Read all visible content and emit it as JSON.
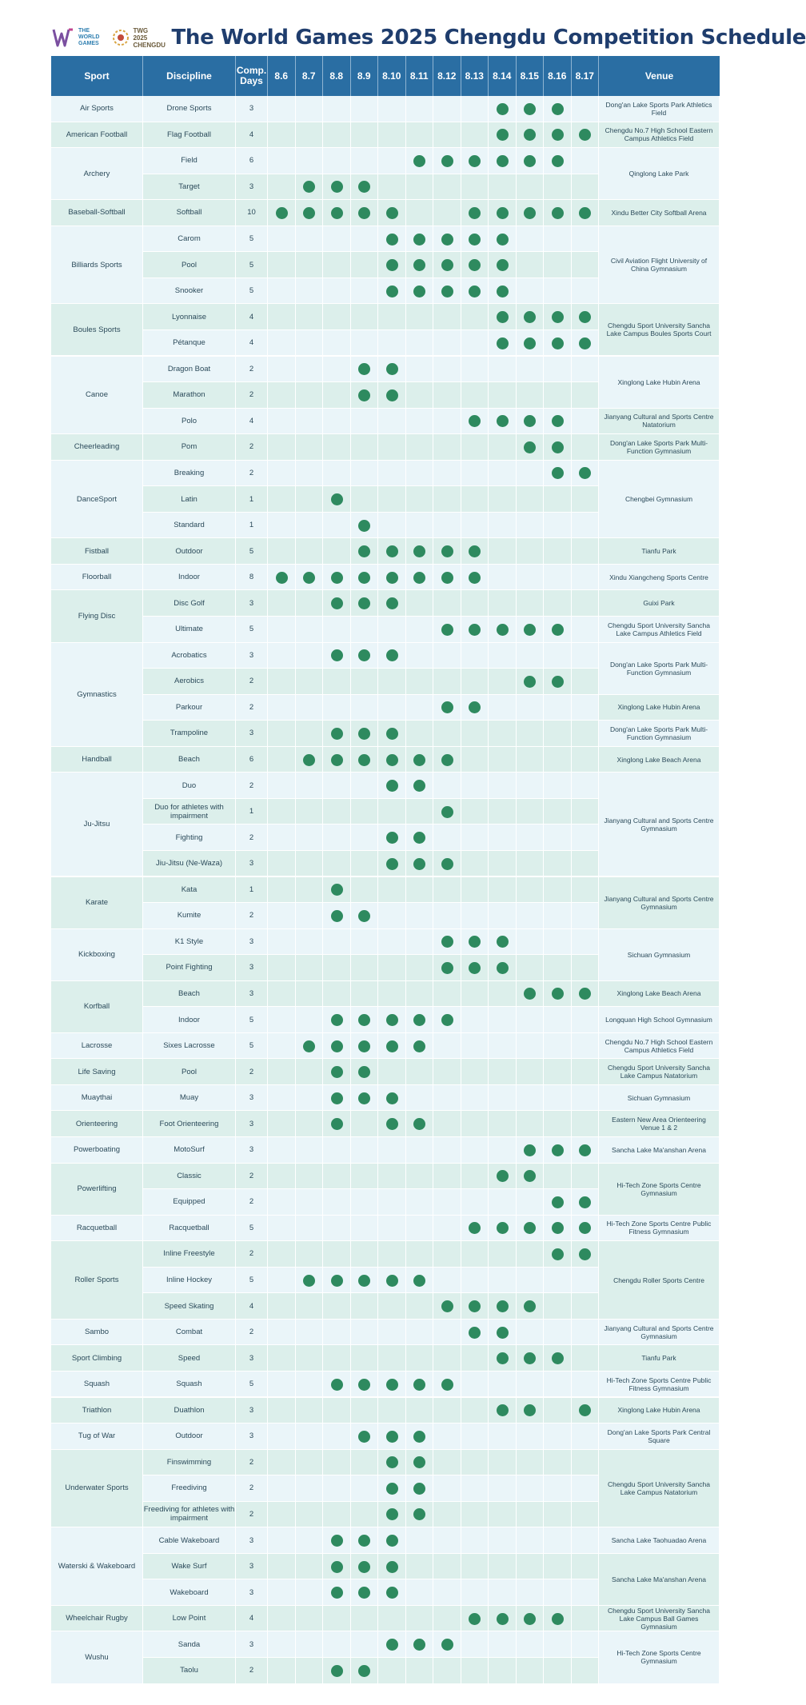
{
  "header": {
    "logo_text": "THE WORLD GAMES",
    "logo_year": "TWG 2025 CHENGDU",
    "title": "The World Games 2025 Chengdu Competition Schedule"
  },
  "columns": {
    "sport": "Sport",
    "discipline": "Discipline",
    "days": "Comp. Days",
    "venue": "Venue",
    "dates": [
      "8.6",
      "8.7",
      "8.8",
      "8.9",
      "8.10",
      "8.11",
      "8.12",
      "8.13",
      "8.14",
      "8.15",
      "8.16",
      "8.17"
    ]
  },
  "colors": {
    "header_bg": "#2a6ea3",
    "dot": "#2e8a5f",
    "band_a": "#eaf5f9",
    "band_b": "#dcefeb",
    "title": "#1f3d6d"
  },
  "sports": [
    {
      "name": "Air Sports",
      "disciplines": [
        {
          "name": "Drone Sports",
          "days": "3",
          "dates": [
            "8.14",
            "8.15",
            "8.16"
          ]
        }
      ],
      "venues": [
        {
          "name": "Dong'an Lake Sports Park Athletics Field",
          "rows": 1
        }
      ]
    },
    {
      "name": "American Football",
      "disciplines": [
        {
          "name": "Flag Football",
          "days": "4",
          "dates": [
            "8.14",
            "8.15",
            "8.16",
            "8.17"
          ]
        }
      ],
      "venues": [
        {
          "name": "Chengdu No.7 High School Eastern Campus Athletics Field",
          "rows": 1
        }
      ]
    },
    {
      "name": "Archery",
      "disciplines": [
        {
          "name": "Field",
          "days": "6",
          "dates": [
            "8.11",
            "8.12",
            "8.13",
            "8.14",
            "8.15",
            "8.16"
          ]
        },
        {
          "name": "Target",
          "days": "3",
          "dates": [
            "8.7",
            "8.8",
            "8.9"
          ]
        }
      ],
      "venues": [
        {
          "name": "Qinglong Lake Park",
          "rows": 2
        }
      ]
    },
    {
      "name": "Baseball-Softball",
      "disciplines": [
        {
          "name": "Softball",
          "days": "10",
          "dates": [
            "8.6",
            "8.7",
            "8.8",
            "8.9",
            "8.10",
            "8.13",
            "8.14",
            "8.15",
            "8.16",
            "8.17"
          ]
        }
      ],
      "venues": [
        {
          "name": "Xindu Better City Softball Arena",
          "rows": 1
        }
      ]
    },
    {
      "name": "Billiards Sports",
      "disciplines": [
        {
          "name": "Carom",
          "days": "5",
          "dates": [
            "8.10",
            "8.11",
            "8.12",
            "8.13",
            "8.14"
          ]
        },
        {
          "name": "Pool",
          "days": "5",
          "dates": [
            "8.10",
            "8.11",
            "8.12",
            "8.13",
            "8.14"
          ]
        },
        {
          "name": "Snooker",
          "days": "5",
          "dates": [
            "8.10",
            "8.11",
            "8.12",
            "8.13",
            "8.14"
          ]
        }
      ],
      "venues": [
        {
          "name": "Civil Aviation Flight University of China Gymnasium",
          "rows": 3
        }
      ]
    },
    {
      "name": "Boules Sports",
      "disciplines": [
        {
          "name": "Lyonnaise",
          "days": "4",
          "dates": [
            "8.14",
            "8.15",
            "8.16",
            "8.17"
          ]
        },
        {
          "name": "Pétanque",
          "days": "4",
          "dates": [
            "8.14",
            "8.15",
            "8.16",
            "8.17"
          ]
        }
      ],
      "venues": [
        {
          "name": "Chengdu Sport University Sancha Lake Campus Boules Sports Court",
          "rows": 2
        }
      ]
    },
    {
      "name": "Canoe",
      "disciplines": [
        {
          "name": "Dragon Boat",
          "days": "2",
          "dates": [
            "8.9",
            "8.10"
          ]
        },
        {
          "name": "Marathon",
          "days": "2",
          "dates": [
            "8.9",
            "8.10"
          ]
        },
        {
          "name": "Polo",
          "days": "4",
          "dates": [
            "8.13",
            "8.14",
            "8.15",
            "8.16"
          ]
        }
      ],
      "venues": [
        {
          "name": "Xinglong Lake Hubin Arena",
          "rows": 2
        },
        {
          "name": "Jianyang Cultural and Sports Centre Natatorium",
          "rows": 1
        }
      ]
    },
    {
      "name": "Cheerleading",
      "disciplines": [
        {
          "name": "Pom",
          "days": "2",
          "dates": [
            "8.15",
            "8.16"
          ]
        }
      ],
      "venues": [
        {
          "name": "Dong'an Lake Sports Park Multi-Function Gymnasium",
          "rows": 1
        }
      ]
    },
    {
      "name": "DanceSport",
      "disciplines": [
        {
          "name": "Breaking",
          "days": "2",
          "dates": [
            "8.16",
            "8.17"
          ]
        },
        {
          "name": "Latin",
          "days": "1",
          "dates": [
            "8.8"
          ]
        },
        {
          "name": "Standard",
          "days": "1",
          "dates": [
            "8.9"
          ]
        }
      ],
      "venues": [
        {
          "name": "Chengbei Gymnasium",
          "rows": 3
        }
      ]
    },
    {
      "name": "Fistball",
      "disciplines": [
        {
          "name": "Outdoor",
          "days": "5",
          "dates": [
            "8.9",
            "8.10",
            "8.11",
            "8.12",
            "8.13"
          ]
        }
      ],
      "venues": [
        {
          "name": "Tianfu Park",
          "rows": 1
        }
      ]
    },
    {
      "name": "Floorball",
      "disciplines": [
        {
          "name": "Indoor",
          "days": "8",
          "dates": [
            "8.6",
            "8.7",
            "8.8",
            "8.9",
            "8.10",
            "8.11",
            "8.12",
            "8.13"
          ]
        }
      ],
      "venues": [
        {
          "name": "Xindu Xiangcheng Sports Centre",
          "rows": 1
        }
      ]
    },
    {
      "name": "Flying Disc",
      "disciplines": [
        {
          "name": "Disc Golf",
          "days": "3",
          "dates": [
            "8.8",
            "8.9",
            "8.10"
          ]
        },
        {
          "name": "Ultimate",
          "days": "5",
          "dates": [
            "8.12",
            "8.13",
            "8.14",
            "8.15",
            "8.16"
          ]
        }
      ],
      "venues": [
        {
          "name": "Guixi Park",
          "rows": 1
        },
        {
          "name": "Chengdu Sport University Sancha Lake Campus Athletics Field",
          "rows": 1
        }
      ]
    },
    {
      "name": "Gymnastics",
      "disciplines": [
        {
          "name": "Acrobatics",
          "days": "3",
          "dates": [
            "8.8",
            "8.9",
            "8.10"
          ]
        },
        {
          "name": "Aerobics",
          "days": "2",
          "dates": [
            "8.15",
            "8.16"
          ]
        },
        {
          "name": "Parkour",
          "days": "2",
          "dates": [
            "8.12",
            "8.13"
          ]
        },
        {
          "name": "Trampoline",
          "days": "3",
          "dates": [
            "8.8",
            "8.9",
            "8.10"
          ]
        }
      ],
      "venues": [
        {
          "name": "Dong'an Lake Sports Park Multi-Function Gymnasium",
          "rows": 2
        },
        {
          "name": "Xinglong Lake Hubin Arena",
          "rows": 1
        },
        {
          "name": "Dong'an Lake Sports Park Multi-Function Gymnasium",
          "rows": 1
        }
      ]
    },
    {
      "name": "Handball",
      "disciplines": [
        {
          "name": "Beach",
          "days": "6",
          "dates": [
            "8.7",
            "8.8",
            "8.9",
            "8.10",
            "8.11",
            "8.12"
          ]
        }
      ],
      "venues": [
        {
          "name": "Xinglong Lake Beach Arena",
          "rows": 1
        }
      ]
    },
    {
      "name": "Ju-Jitsu",
      "disciplines": [
        {
          "name": "Duo",
          "days": "2",
          "dates": [
            "8.10",
            "8.11"
          ]
        },
        {
          "name": "Duo for athletes with impairment",
          "days": "1",
          "dates": [
            "8.12"
          ]
        },
        {
          "name": "Fighting",
          "days": "2",
          "dates": [
            "8.10",
            "8.11"
          ]
        },
        {
          "name": "Jiu-Jitsu (Ne-Waza)",
          "days": "3",
          "dates": [
            "8.10",
            "8.11",
            "8.12"
          ]
        }
      ],
      "venues": [
        {
          "name": "Jianyang Cultural and Sports Centre Gymnasium",
          "rows": 4
        }
      ]
    },
    {
      "name": "Karate",
      "disciplines": [
        {
          "name": "Kata",
          "days": "1",
          "dates": [
            "8.8"
          ]
        },
        {
          "name": "Kumite",
          "days": "2",
          "dates": [
            "8.8",
            "8.9"
          ]
        }
      ],
      "venues": [
        {
          "name": "Jianyang Cultural and Sports Centre Gymnasium",
          "rows": 2
        }
      ]
    },
    {
      "name": "Kickboxing",
      "disciplines": [
        {
          "name": "K1 Style",
          "days": "3",
          "dates": [
            "8.12",
            "8.13",
            "8.14"
          ]
        },
        {
          "name": "Point Fighting",
          "days": "3",
          "dates": [
            "8.12",
            "8.13",
            "8.14"
          ]
        }
      ],
      "venues": [
        {
          "name": "Sichuan Gymnasium",
          "rows": 2
        }
      ]
    },
    {
      "name": "Korfball",
      "disciplines": [
        {
          "name": "Beach",
          "days": "3",
          "dates": [
            "8.15",
            "8.16",
            "8.17"
          ]
        },
        {
          "name": "Indoor",
          "days": "5",
          "dates": [
            "8.8",
            "8.9",
            "8.10",
            "8.11",
            "8.12"
          ]
        }
      ],
      "venues": [
        {
          "name": "Xinglong Lake Beach Arena",
          "rows": 1
        },
        {
          "name": "Longquan High School Gymnasium",
          "rows": 1
        }
      ]
    },
    {
      "name": "Lacrosse",
      "disciplines": [
        {
          "name": "Sixes Lacrosse",
          "days": "5",
          "dates": [
            "8.7",
            "8.8",
            "8.9",
            "8.10",
            "8.11"
          ]
        }
      ],
      "venues": [
        {
          "name": "Chengdu No.7 High School Eastern Campus Athletics Field",
          "rows": 1
        }
      ]
    },
    {
      "name": "Life Saving",
      "disciplines": [
        {
          "name": "Pool",
          "days": "2",
          "dates": [
            "8.8",
            "8.9"
          ]
        }
      ],
      "venues": [
        {
          "name": "Chengdu Sport University Sancha Lake Campus Natatorium",
          "rows": 1
        }
      ]
    },
    {
      "name": "Muaythai",
      "disciplines": [
        {
          "name": "Muay",
          "days": "3",
          "dates": [
            "8.8",
            "8.9",
            "8.10"
          ]
        }
      ],
      "venues": [
        {
          "name": "Sichuan Gymnasium",
          "rows": 1
        }
      ]
    },
    {
      "name": "Orienteering",
      "disciplines": [
        {
          "name": "Foot Orienteering",
          "days": "3",
          "dates": [
            "8.8",
            "8.10",
            "8.11"
          ]
        }
      ],
      "venues": [
        {
          "name": "Eastern New Area Orienteering Venue 1 & 2",
          "rows": 1
        }
      ]
    },
    {
      "name": "Powerboating",
      "disciplines": [
        {
          "name": "MotoSurf",
          "days": "3",
          "dates": [
            "8.15",
            "8.16",
            "8.17"
          ]
        }
      ],
      "venues": [
        {
          "name": "Sancha Lake Ma'anshan Arena",
          "rows": 1
        }
      ]
    },
    {
      "name": "Powerlifting",
      "disciplines": [
        {
          "name": "Classic",
          "days": "2",
          "dates": [
            "8.14",
            "8.15"
          ]
        },
        {
          "name": "Equipped",
          "days": "2",
          "dates": [
            "8.16",
            "8.17"
          ]
        }
      ],
      "venues": [
        {
          "name": "Hi-Tech Zone Sports Centre Gymnasium",
          "rows": 2
        }
      ]
    },
    {
      "name": "Racquetball",
      "disciplines": [
        {
          "name": "Racquetball",
          "days": "5",
          "dates": [
            "8.13",
            "8.14",
            "8.15",
            "8.16",
            "8.17"
          ]
        }
      ],
      "venues": [
        {
          "name": "Hi-Tech Zone Sports Centre Public Fitness Gymnasium",
          "rows": 1
        }
      ]
    },
    {
      "name": "Roller Sports",
      "disciplines": [
        {
          "name": "Inline Freestyle",
          "days": "2",
          "dates": [
            "8.16",
            "8.17"
          ]
        },
        {
          "name": "Inline Hockey",
          "days": "5",
          "dates": [
            "8.7",
            "8.8",
            "8.9",
            "8.10",
            "8.11"
          ]
        },
        {
          "name": "Speed Skating",
          "days": "4",
          "dates": [
            "8.12",
            "8.13",
            "8.14",
            "8.15"
          ]
        }
      ],
      "venues": [
        {
          "name": "Chengdu Roller Sports Centre",
          "rows": 3
        }
      ]
    },
    {
      "name": "Sambo",
      "disciplines": [
        {
          "name": "Combat",
          "days": "2",
          "dates": [
            "8.13",
            "8.14"
          ]
        }
      ],
      "venues": [
        {
          "name": "Jianyang Cultural and Sports Centre Gymnasium",
          "rows": 1
        }
      ]
    },
    {
      "name": "Sport Climbing",
      "disciplines": [
        {
          "name": "Speed",
          "days": "3",
          "dates": [
            "8.14",
            "8.15",
            "8.16"
          ]
        }
      ],
      "venues": [
        {
          "name": "Tianfu Park",
          "rows": 1
        }
      ]
    },
    {
      "name": "Squash",
      "disciplines": [
        {
          "name": "Squash",
          "days": "5",
          "dates": [
            "8.8",
            "8.9",
            "8.10",
            "8.11",
            "8.12"
          ]
        }
      ],
      "venues": [
        {
          "name": "Hi-Tech Zone Sports Centre Public Fitness Gymnasium",
          "rows": 1
        }
      ]
    },
    {
      "name": "Triathlon",
      "disciplines": [
        {
          "name": "Duathlon",
          "days": "3",
          "dates": [
            "8.14",
            "8.15",
            "8.17"
          ]
        }
      ],
      "venues": [
        {
          "name": "Xinglong Lake Hubin Arena",
          "rows": 1
        }
      ]
    },
    {
      "name": "Tug of War",
      "disciplines": [
        {
          "name": "Outdoor",
          "days": "3",
          "dates": [
            "8.9",
            "8.10",
            "8.11"
          ]
        }
      ],
      "venues": [
        {
          "name": "Dong'an Lake Sports Park Central Square",
          "rows": 1
        }
      ]
    },
    {
      "name": "Underwater Sports",
      "disciplines": [
        {
          "name": "Finswimming",
          "days": "2",
          "dates": [
            "8.10",
            "8.11"
          ]
        },
        {
          "name": "Freediving",
          "days": "2",
          "dates": [
            "8.10",
            "8.11"
          ]
        },
        {
          "name": "Freediving for athletes with impairment",
          "days": "2",
          "dates": [
            "8.10",
            "8.11"
          ]
        }
      ],
      "venues": [
        {
          "name": "Chengdu Sport University Sancha Lake Campus Natatorium",
          "rows": 3
        }
      ]
    },
    {
      "name": "Waterski & Wakeboard",
      "disciplines": [
        {
          "name": "Cable Wakeboard",
          "days": "3",
          "dates": [
            "8.8",
            "8.9",
            "8.10"
          ]
        },
        {
          "name": "Wake Surf",
          "days": "3",
          "dates": [
            "8.8",
            "8.9",
            "8.10"
          ]
        },
        {
          "name": "Wakeboard",
          "days": "3",
          "dates": [
            "8.8",
            "8.9",
            "8.10"
          ]
        }
      ],
      "venues": [
        {
          "name": "Sancha Lake Taohuadao Arena",
          "rows": 1
        },
        {
          "name": "Sancha Lake Ma'anshan Arena",
          "rows": 2
        }
      ]
    },
    {
      "name": "Wheelchair Rugby",
      "disciplines": [
        {
          "name": "Low Point",
          "days": "4",
          "dates": [
            "8.13",
            "8.14",
            "8.15",
            "8.16"
          ]
        }
      ],
      "venues": [
        {
          "name": "Chengdu Sport University Sancha Lake Campus Ball Games Gymnasium",
          "rows": 1
        }
      ]
    },
    {
      "name": "Wushu",
      "disciplines": [
        {
          "name": "Sanda",
          "days": "3",
          "dates": [
            "8.10",
            "8.11",
            "8.12"
          ]
        },
        {
          "name": "Taolu",
          "days": "2",
          "dates": [
            "8.8",
            "8.9"
          ]
        }
      ],
      "venues": [
        {
          "name": "Hi-Tech Zone Sports Centre Gymnasium",
          "rows": 2
        }
      ]
    }
  ]
}
